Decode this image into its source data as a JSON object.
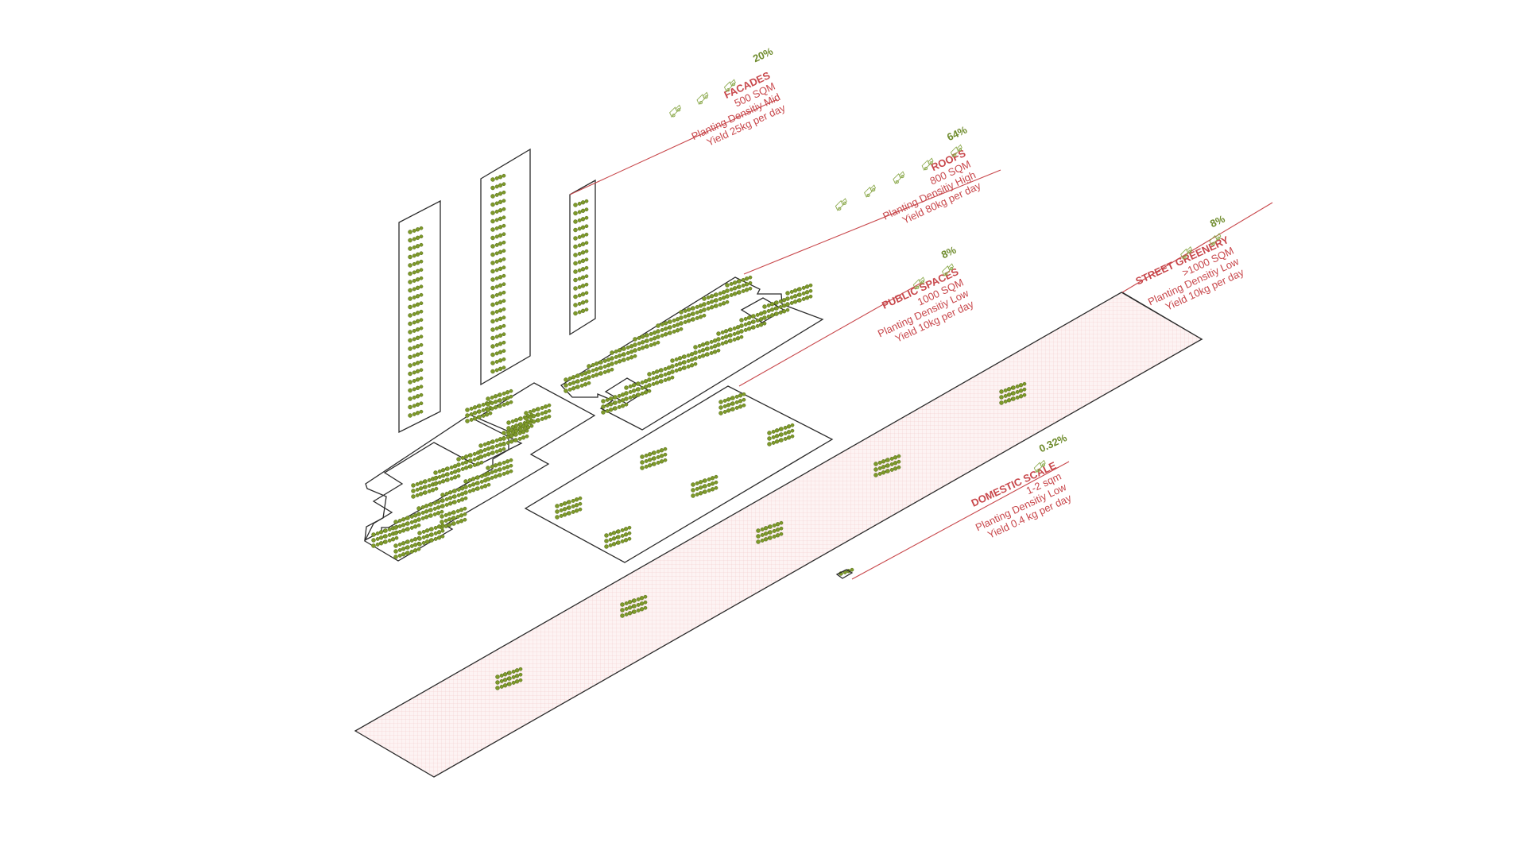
{
  "colors": {
    "accent_red": "#c8474b",
    "plant_green": "#7e9a2a",
    "percent_green": "#6d8a2a",
    "outline": "#2b2b2b",
    "ground_tint": "#fbeeee"
  },
  "icons": {
    "plant": "plant-cluster-icon",
    "yield": "delivery-truck-icon"
  },
  "annotations": {
    "facades": {
      "percent": "20%",
      "title": "FACADES",
      "lines": [
        "500 SQM",
        "Planting Densitiy Mid",
        "Yield 25kg per day"
      ],
      "truck_count": 3
    },
    "roofs": {
      "percent": "64%",
      "title": "ROOFS",
      "lines": [
        "800 SQM",
        "Planting Densitiy High",
        "Yield 80kg per day"
      ],
      "truck_count": 5
    },
    "public_spaces": {
      "percent": "8%",
      "title": "PUBLIC SPACES",
      "lines": [
        "1000 SQM",
        "Planting Densitiy Low",
        "Yield 10kg per day"
      ],
      "truck_count": 2
    },
    "street_greenery": {
      "percent": "8%",
      "title": "STREET GREENERY",
      "lines": [
        ">1000 SQM",
        "Planting Densitiy Low",
        "Yield 10kg per day"
      ],
      "truck_count": 2
    },
    "domestic_scale": {
      "percent": "0.32%",
      "title": "DOMESTIC SCALE",
      "lines": [
        "1-2 sqm",
        "Planting Densitiy Low",
        "Yield 0.4 kg per day"
      ],
      "truck_count": 1
    }
  }
}
